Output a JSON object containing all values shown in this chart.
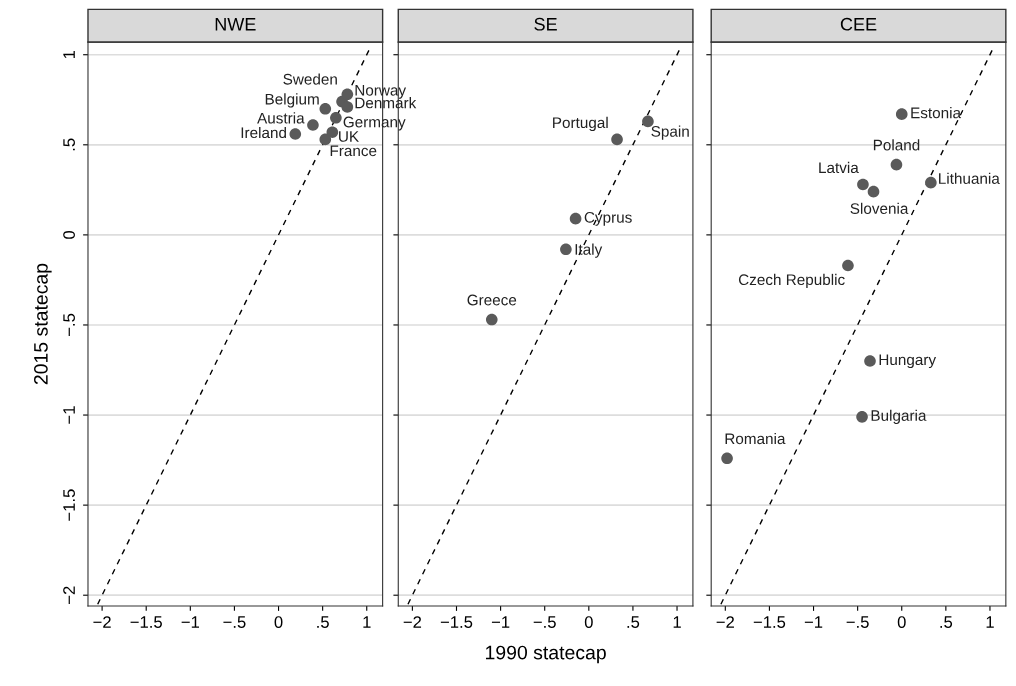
{
  "chart_data": [
    {
      "type": "scatter",
      "title": "NWE",
      "ylabel": "2015 statecap",
      "xlim": [
        -2.16,
        1.18
      ],
      "ylim": [
        -2.06,
        1.07
      ],
      "grid": "y",
      "marker": "circle",
      "xticks": [
        {
          "value": -2,
          "label": "−2"
        },
        {
          "value": -1.5,
          "label": "−1.5"
        },
        {
          "value": -1,
          "label": "−1"
        },
        {
          "value": -0.5,
          "label": "−.5"
        },
        0,
        {
          "value": 0.5,
          "label": ".5"
        },
        1
      ],
      "yticks": [
        {
          "value": -2,
          "label": "−2"
        },
        {
          "value": -1.5,
          "label": "−1.5"
        },
        {
          "value": -1,
          "label": "−1"
        },
        {
          "value": -0.5,
          "label": "−.5"
        },
        0,
        {
          "value": 0.5,
          "label": ".5"
        },
        1
      ],
      "series": [
        {
          "color": "#5a5a5a",
          "x": [
            0.19,
            0.39,
            0.53,
            0.72,
            0.78,
            0.78,
            0.65,
            0.61,
            0.53
          ],
          "values": [
            0.56,
            0.61,
            0.7,
            0.74,
            0.78,
            0.71,
            0.65,
            0.57,
            0.53
          ],
          "value_labels": [
            "Ireland",
            "Austria",
            "Belgium",
            "Sweden",
            "Norway",
            "Denmark",
            "Germany",
            "UK",
            "France"
          ]
        },
        {
          "type": "line",
          "color": "#000000",
          "line_style": "dashed",
          "marker": "none",
          "x": [
            -2.05,
            1.05
          ],
          "values": [
            -2.05,
            1.05
          ]
        }
      ]
    },
    {
      "type": "scatter",
      "title": "SE",
      "xlabel": "1990 statecap",
      "xlim": [
        -2.16,
        1.18
      ],
      "ylim": [
        -2.06,
        1.07
      ],
      "grid": "y",
      "marker": "circle",
      "tick_labels": "x",
      "xticks": [
        {
          "value": -2,
          "label": "−2"
        },
        {
          "value": -1.5,
          "label": "−1.5"
        },
        {
          "value": -1,
          "label": "−1"
        },
        {
          "value": -0.5,
          "label": "−.5"
        },
        0,
        {
          "value": 0.5,
          "label": ".5"
        },
        1
      ],
      "yticks": [
        {
          "value": -2,
          "label": null
        },
        {
          "value": -1.5,
          "label": null
        },
        {
          "value": -1,
          "label": null
        },
        {
          "value": -0.5,
          "label": null
        },
        {
          "value": 0,
          "label": null
        },
        {
          "value": 0.5,
          "label": null
        },
        {
          "value": 1,
          "label": null
        }
      ],
      "series": [
        {
          "color": "#5a5a5a",
          "x": [
            0.32,
            0.67,
            -0.15,
            -0.26,
            -1.1
          ],
          "values": [
            0.53,
            0.63,
            0.09,
            -0.08,
            -0.47
          ],
          "value_labels": [
            "Portugal",
            "Spain",
            "Cyprus",
            "Italy",
            "Greece"
          ]
        },
        {
          "type": "line",
          "color": "#000000",
          "line_style": "dashed",
          "marker": "none",
          "x": [
            -2.05,
            1.05
          ],
          "values": [
            -2.05,
            1.05
          ]
        }
      ]
    },
    {
      "type": "scatter",
      "title": "CEE",
      "xlim": [
        -2.16,
        1.18
      ],
      "ylim": [
        -2.06,
        1.07
      ],
      "grid": "y",
      "marker": "circle",
      "tick_labels": "x",
      "xticks": [
        {
          "value": -2,
          "label": "−2"
        },
        {
          "value": -1.5,
          "label": "−1.5"
        },
        {
          "value": -1,
          "label": "−1"
        },
        {
          "value": -0.5,
          "label": "−.5"
        },
        0,
        {
          "value": 0.5,
          "label": ".5"
        },
        1
      ],
      "yticks": [
        {
          "value": -2,
          "label": null
        },
        {
          "value": -1.5,
          "label": null
        },
        {
          "value": -1,
          "label": null
        },
        {
          "value": -0.5,
          "label": null
        },
        {
          "value": 0,
          "label": null
        },
        {
          "value": 0.5,
          "label": null
        },
        {
          "value": 1,
          "label": null
        }
      ],
      "series": [
        {
          "color": "#5a5a5a",
          "x": [
            0.0,
            -0.06,
            -0.44,
            -0.32,
            0.33,
            -0.61,
            -0.36,
            -0.45,
            -1.98
          ],
          "values": [
            0.67,
            0.39,
            0.28,
            0.24,
            0.29,
            -0.17,
            -0.7,
            -1.01,
            -1.24
          ],
          "value_labels": [
            "Estonia",
            "Poland",
            "Latvia",
            "Slovenia",
            "Lithuania",
            "Czech Republic",
            "Hungary",
            "Bulgaria",
            "Romania"
          ]
        },
        {
          "type": "line",
          "color": "#000000",
          "line_style": "dashed",
          "marker": "none",
          "x": [
            -2.05,
            1.05
          ],
          "values": [
            -2.05,
            1.05
          ]
        }
      ]
    }
  ]
}
